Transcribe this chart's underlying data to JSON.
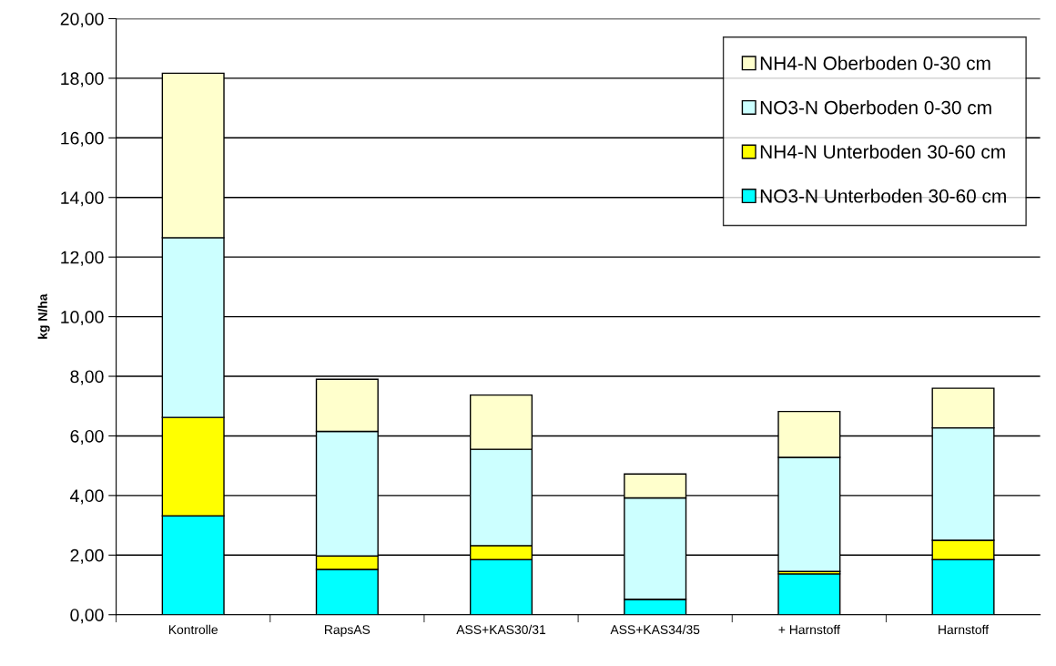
{
  "chart_data": {
    "type": "bar",
    "stacked": true,
    "ylabel": "kg N/ha",
    "categories": [
      "Kontrolle",
      "RapsAS",
      "ASS+KAS30/31",
      "ASS+KAS34/35",
      "+ Harnstoff",
      "Harnstoff"
    ],
    "series": [
      {
        "name": "NO3-N Unterboden 30-60 cm",
        "color": "#00ffff",
        "values": [
          3.32,
          1.52,
          1.85,
          0.52,
          1.37,
          1.85
        ]
      },
      {
        "name": "NH4-N Unterboden 30-60 cm",
        "color": "#ffff00",
        "values": [
          3.3,
          0.45,
          0.47,
          0.0,
          0.08,
          0.65
        ]
      },
      {
        "name": "NO3-N Oberboden 0-30 cm",
        "color": "#ccffff",
        "values": [
          6.03,
          4.18,
          3.23,
          3.4,
          3.83,
          3.77
        ]
      },
      {
        "name": "NH4-N Oberboden 0-30 cm",
        "color": "#ffffcc",
        "values": [
          5.52,
          1.75,
          1.82,
          0.8,
          1.54,
          1.33
        ]
      }
    ],
    "ylim": [
      0,
      20
    ],
    "yticks": [
      {
        "value": 0,
        "label": "0,00"
      },
      {
        "value": 2,
        "label": "2,00"
      },
      {
        "value": 4,
        "label": "4,00"
      },
      {
        "value": 6,
        "label": "6,00"
      },
      {
        "value": 8,
        "label": "8,00"
      },
      {
        "value": 10,
        "label": "10,00"
      },
      {
        "value": 12,
        "label": "12,00"
      },
      {
        "value": 14,
        "label": "14,00"
      },
      {
        "value": 16,
        "label": "16,00"
      },
      {
        "value": 18,
        "label": "18,00"
      },
      {
        "value": 20,
        "label": "20,00"
      }
    ],
    "grid": "y",
    "legend": "top right"
  }
}
